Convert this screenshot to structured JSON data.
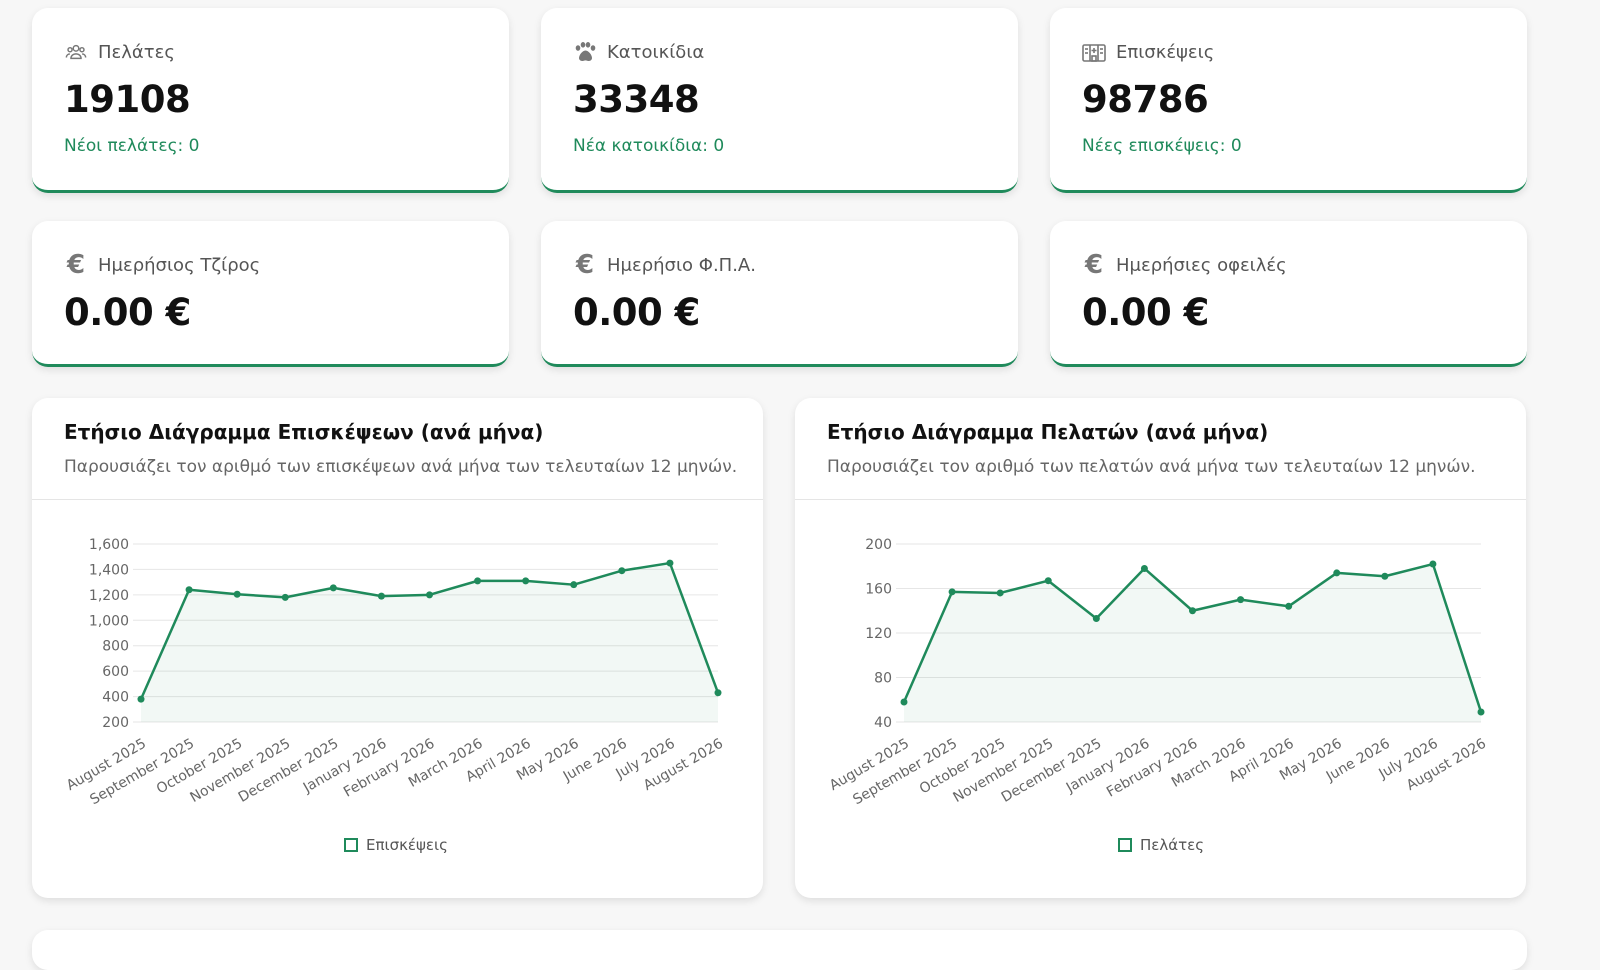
{
  "stats_row1": [
    {
      "icon": "users-icon",
      "label": "Πελάτες",
      "value": "19108",
      "sub": "Νέοι πελάτες: 0"
    },
    {
      "icon": "paw-icon",
      "label": "Κατοικίδια",
      "value": "33348",
      "sub": "Νέα κατοικίδια: 0"
    },
    {
      "icon": "hospital-icon",
      "label": "Επισκέψεις",
      "value": "98786",
      "sub": "Νέες επισκέψεις: 0"
    }
  ],
  "stats_row2": [
    {
      "icon": "euro-icon",
      "symbol": "€",
      "label": "Ημερήσιος Τζίρος",
      "value": "0.00 €"
    },
    {
      "icon": "euro-icon",
      "symbol": "€",
      "label": "Ημερήσιο Φ.Π.Α.",
      "value": "0.00 €"
    },
    {
      "icon": "euro-icon",
      "symbol": "€",
      "label": "Ημερήσιες οφειλές",
      "value": "0.00 €"
    }
  ],
  "accent_color": "#1f8a5b",
  "chart_data": [
    {
      "type": "area",
      "title": "Ετήσιο Διάγραμμα Επισκέψεων (ανά μήνα)",
      "subtitle": "Παρουσιάζει τον αριθμό των επισκέψεων ανά μήνα των τελευταίων 12 μηνών.",
      "categories": [
        "August 2025",
        "September 2025",
        "October 2025",
        "November 2025",
        "December 2025",
        "January 2026",
        "February 2026",
        "March 2026",
        "April 2026",
        "May 2026",
        "June 2026",
        "July 2026",
        "August 2026"
      ],
      "series": [
        {
          "name": "Επισκέψεις",
          "values": [
            380,
            1240,
            1205,
            1180,
            1255,
            1190,
            1200,
            1310,
            1310,
            1280,
            1390,
            1450,
            430
          ]
        }
      ],
      "yticks": [
        "200",
        "400",
        "600",
        "800",
        "1,000",
        "1,200",
        "1,400",
        "1,600"
      ],
      "ylim": [
        200,
        1600
      ],
      "grid": true,
      "legend": "bottom"
    },
    {
      "type": "area",
      "title": "Ετήσιο Διάγραμμα Πελατών (ανά μήνα)",
      "subtitle": "Παρουσιάζει τον αριθμό των πελατών ανά μήνα των τελευταίων 12 μηνών.",
      "categories": [
        "August 2025",
        "September 2025",
        "October 2025",
        "November 2025",
        "December 2025",
        "January 2026",
        "February 2026",
        "March 2026",
        "April 2026",
        "May 2026",
        "June 2026",
        "July 2026",
        "August 2026"
      ],
      "series": [
        {
          "name": "Πελάτες",
          "values": [
            58,
            157,
            156,
            167,
            133,
            178,
            140,
            150,
            144,
            174,
            171,
            182,
            49
          ]
        }
      ],
      "yticks": [
        "40",
        "80",
        "120",
        "160",
        "200"
      ],
      "ylim": [
        40,
        200
      ],
      "grid": true,
      "legend": "bottom"
    }
  ]
}
